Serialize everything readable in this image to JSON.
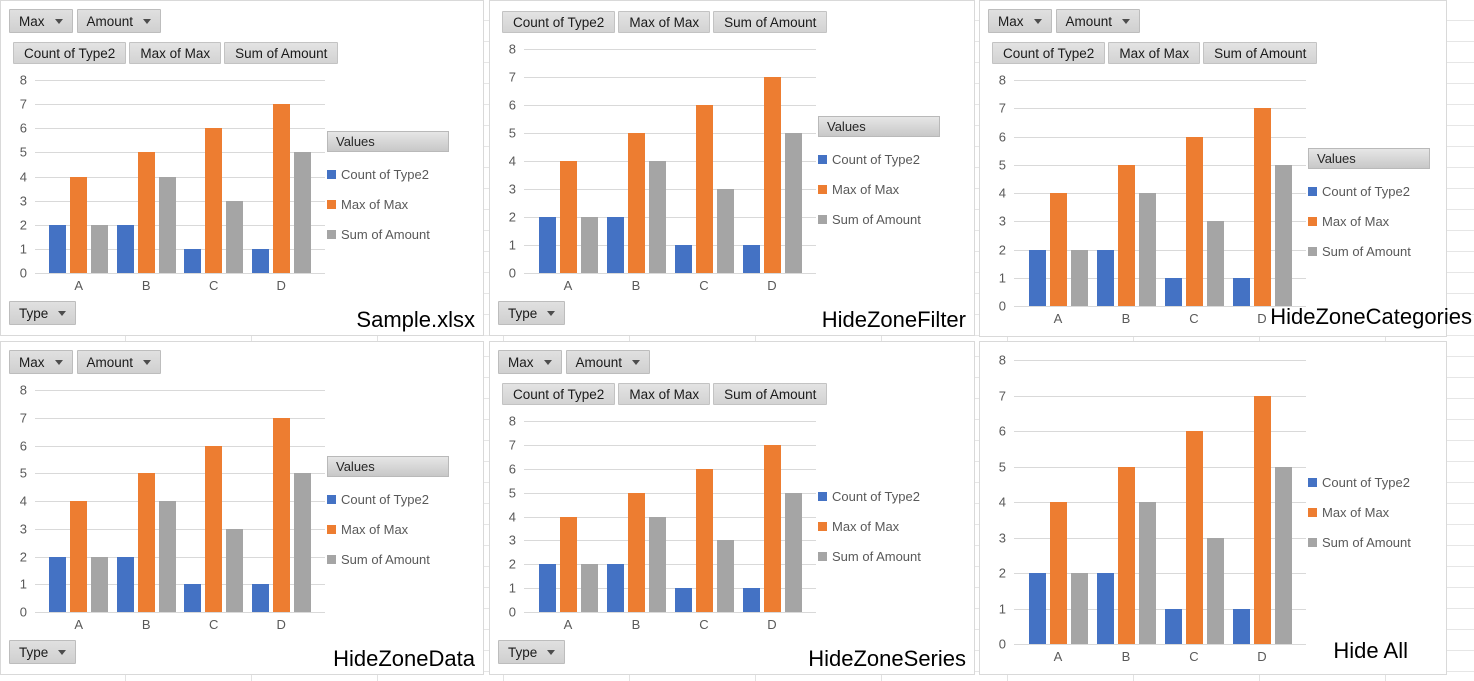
{
  "buttons": {
    "filter_fields": [
      "Max",
      "Amount"
    ],
    "data_fields": [
      "Count of Type2",
      "Max of Max",
      "Sum of Amount"
    ],
    "values_header": "Values",
    "axis_field": "Type"
  },
  "legend": {
    "items": [
      {
        "label": "Count of Type2",
        "color": "#4472C4"
      },
      {
        "label": "Max of Max",
        "color": "#ED7D31"
      },
      {
        "label": "Sum of Amount",
        "color": "#A5A5A5"
      }
    ]
  },
  "panels": [
    {
      "label": "Sample.xlsx"
    },
    {
      "label": "HideZoneFilter"
    },
    {
      "label": "HideZoneCategories"
    },
    {
      "label": "HideZoneData"
    },
    {
      "label": "HideZoneSeries"
    },
    {
      "label": "Hide All"
    }
  ],
  "colors": {
    "series_blue": "#4472C4",
    "series_orange": "#ED7D31",
    "series_gray": "#A5A5A5",
    "gridline": "#D9D9D9",
    "axis_text": "#595959"
  },
  "chart_data": [
    {
      "type": "bar",
      "title": "Sample.xlsx",
      "categories": [
        "A",
        "B",
        "C",
        "D"
      ],
      "series": [
        {
          "name": "Count of Type2",
          "color": "#4472C4",
          "values": [
            2,
            2,
            1,
            1
          ]
        },
        {
          "name": "Max of Max",
          "color": "#ED7D31",
          "values": [
            4,
            5,
            6,
            7
          ]
        },
        {
          "name": "Sum of Amount",
          "color": "#A5A5A5",
          "values": [
            2,
            4,
            3,
            5
          ]
        }
      ],
      "ylim": [
        0,
        8
      ],
      "ytick_step": 1,
      "grid": true,
      "legend_position": "right"
    },
    {
      "type": "bar",
      "title": "HideZoneFilter",
      "categories": [
        "A",
        "B",
        "C",
        "D"
      ],
      "series": [
        {
          "name": "Count of Type2",
          "color": "#4472C4",
          "values": [
            2,
            2,
            1,
            1
          ]
        },
        {
          "name": "Max of Max",
          "color": "#ED7D31",
          "values": [
            4,
            5,
            6,
            7
          ]
        },
        {
          "name": "Sum of Amount",
          "color": "#A5A5A5",
          "values": [
            2,
            4,
            3,
            5
          ]
        }
      ],
      "ylim": [
        0,
        8
      ],
      "ytick_step": 1,
      "grid": true,
      "legend_position": "right"
    },
    {
      "type": "bar",
      "title": "HideZoneCategories",
      "categories": [
        "A",
        "B",
        "C",
        "D"
      ],
      "series": [
        {
          "name": "Count of Type2",
          "color": "#4472C4",
          "values": [
            2,
            2,
            1,
            1
          ]
        },
        {
          "name": "Max of Max",
          "color": "#ED7D31",
          "values": [
            4,
            5,
            6,
            7
          ]
        },
        {
          "name": "Sum of Amount",
          "color": "#A5A5A5",
          "values": [
            2,
            4,
            3,
            5
          ]
        }
      ],
      "ylim": [
        0,
        8
      ],
      "ytick_step": 1,
      "grid": true,
      "legend_position": "right"
    },
    {
      "type": "bar",
      "title": "HideZoneData",
      "categories": [
        "A",
        "B",
        "C",
        "D"
      ],
      "series": [
        {
          "name": "Count of Type2",
          "color": "#4472C4",
          "values": [
            2,
            2,
            1,
            1
          ]
        },
        {
          "name": "Max of Max",
          "color": "#ED7D31",
          "values": [
            4,
            5,
            6,
            7
          ]
        },
        {
          "name": "Sum of Amount",
          "color": "#A5A5A5",
          "values": [
            2,
            4,
            3,
            5
          ]
        }
      ],
      "ylim": [
        0,
        8
      ],
      "ytick_step": 1,
      "grid": true,
      "legend_position": "right"
    },
    {
      "type": "bar",
      "title": "HideZoneSeries",
      "categories": [
        "A",
        "B",
        "C",
        "D"
      ],
      "series": [
        {
          "name": "Count of Type2",
          "color": "#4472C4",
          "values": [
            2,
            2,
            1,
            1
          ]
        },
        {
          "name": "Max of Max",
          "color": "#ED7D31",
          "values": [
            4,
            5,
            6,
            7
          ]
        },
        {
          "name": "Sum of Amount",
          "color": "#A5A5A5",
          "values": [
            2,
            4,
            3,
            5
          ]
        }
      ],
      "ylim": [
        0,
        8
      ],
      "ytick_step": 1,
      "grid": true,
      "legend_position": "right"
    },
    {
      "type": "bar",
      "title": "Hide All",
      "categories": [
        "A",
        "B",
        "C",
        "D"
      ],
      "series": [
        {
          "name": "Count of Type2",
          "color": "#4472C4",
          "values": [
            2,
            2,
            1,
            1
          ]
        },
        {
          "name": "Max of Max",
          "color": "#ED7D31",
          "values": [
            4,
            5,
            6,
            7
          ]
        },
        {
          "name": "Sum of Amount",
          "color": "#A5A5A5",
          "values": [
            2,
            4,
            3,
            5
          ]
        }
      ],
      "ylim": [
        0,
        8
      ],
      "ytick_step": 1,
      "grid": true,
      "legend_position": "right"
    }
  ]
}
